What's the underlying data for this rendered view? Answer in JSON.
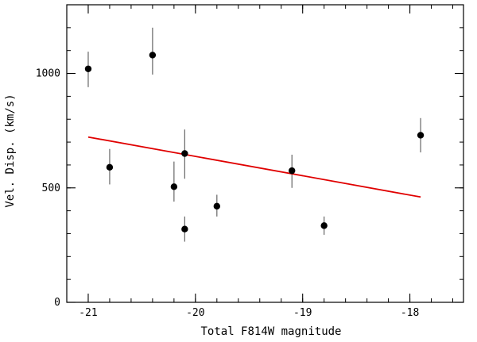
{
  "chart_data": {
    "type": "scatter",
    "title": "",
    "xlabel": "Total F814W magnitude",
    "ylabel": "Vel. Disp. (km/s)",
    "xlim": [
      -21.2,
      -17.5
    ],
    "ylim": [
      0,
      1300
    ],
    "x_ticks": [
      {
        "value": -21,
        "label": "-21"
      },
      {
        "value": -20,
        "label": "-20"
      },
      {
        "value": -19,
        "label": "-19"
      },
      {
        "value": -18,
        "label": "-18"
      }
    ],
    "y_ticks": [
      {
        "value": 0,
        "label": "0"
      },
      {
        "value": 500,
        "label": "500"
      },
      {
        "value": 1000,
        "label": "1000"
      }
    ],
    "grid": false,
    "series": [
      {
        "type": "scatter",
        "color": "#000000",
        "points": [
          {
            "x": -21.0,
            "y": 1020,
            "err_low": 80,
            "err_high": 75
          },
          {
            "x": -20.8,
            "y": 590,
            "err_low": 75,
            "err_high": 80
          },
          {
            "x": -20.4,
            "y": 1080,
            "err_low": 85,
            "err_high": 120
          },
          {
            "x": -20.2,
            "y": 505,
            "err_low": 65,
            "err_high": 110
          },
          {
            "x": -20.1,
            "y": 650,
            "err_low": 110,
            "err_high": 105
          },
          {
            "x": -20.1,
            "y": 320,
            "err_low": 55,
            "err_high": 55
          },
          {
            "x": -19.8,
            "y": 420,
            "err_low": 45,
            "err_high": 50
          },
          {
            "x": -19.1,
            "y": 575,
            "err_low": 75,
            "err_high": 70
          },
          {
            "x": -18.8,
            "y": 335,
            "err_low": 40,
            "err_high": 40
          },
          {
            "x": -17.9,
            "y": 730,
            "err_low": 75,
            "err_high": 75
          }
        ]
      },
      {
        "type": "line",
        "color": "#e00000",
        "points": [
          {
            "x": -21.0,
            "y": 722
          },
          {
            "x": -17.9,
            "y": 460
          }
        ]
      }
    ]
  }
}
